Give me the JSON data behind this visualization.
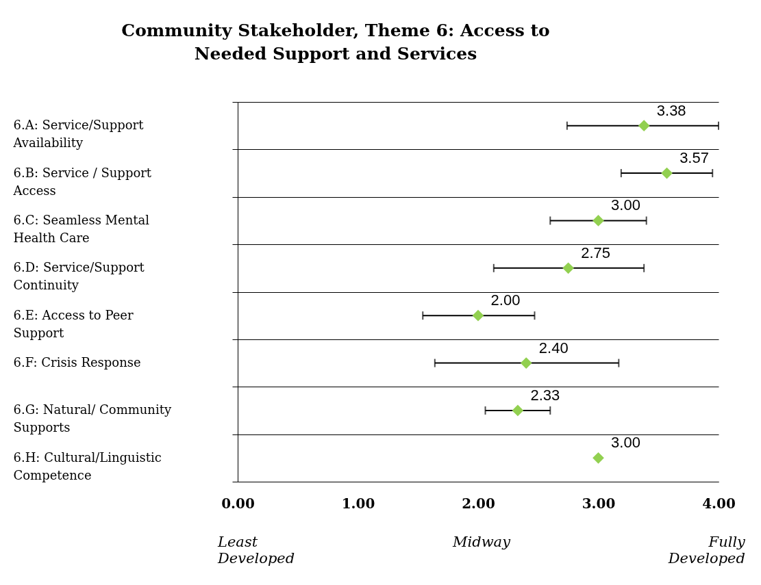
{
  "chart_data": {
    "type": "scatter",
    "orientation": "horizontal",
    "title": "Community Stakeholder, Theme 6: Access to Needed Support and Services",
    "categories": [
      "6.A: Service/Support Availability",
      "6.B: Service / Support Access",
      "6.C: Seamless Mental Health Care",
      "6.D: Service/Support Continuity",
      "6.E: Access to Peer Support",
      "6.F: Crisis Response",
      "6.G: Natural/ Community Supports",
      "6.H: Cultural/Linguistic Competence"
    ],
    "values": [
      3.38,
      3.57,
      3.0,
      2.75,
      2.0,
      2.4,
      2.33,
      3.0
    ],
    "errors": [
      [
        2.74,
        4.0
      ],
      [
        3.19,
        3.95
      ],
      [
        2.6,
        3.4
      ],
      [
        2.13,
        3.38
      ],
      [
        1.54,
        2.47
      ],
      [
        1.64,
        3.17
      ],
      [
        2.06,
        2.6
      ],
      null
    ],
    "value_labels": [
      "3.38",
      "3.57",
      "3.00",
      "2.75",
      "2.00",
      "2.40",
      "2.33",
      "3.00"
    ],
    "color": "#92d050",
    "marker": "diamond",
    "xlim": [
      0,
      4
    ],
    "xticks": [
      {
        "value": 0,
        "label": "0.00"
      },
      {
        "value": 1,
        "label": "1.00"
      },
      {
        "value": 2,
        "label": "2.00"
      },
      {
        "value": 3,
        "label": "3.00"
      },
      {
        "value": 4,
        "label": "4.00"
      }
    ],
    "grid": "y",
    "annotations": [
      "Least Developed",
      "Midway",
      "Fully Developed"
    ]
  }
}
